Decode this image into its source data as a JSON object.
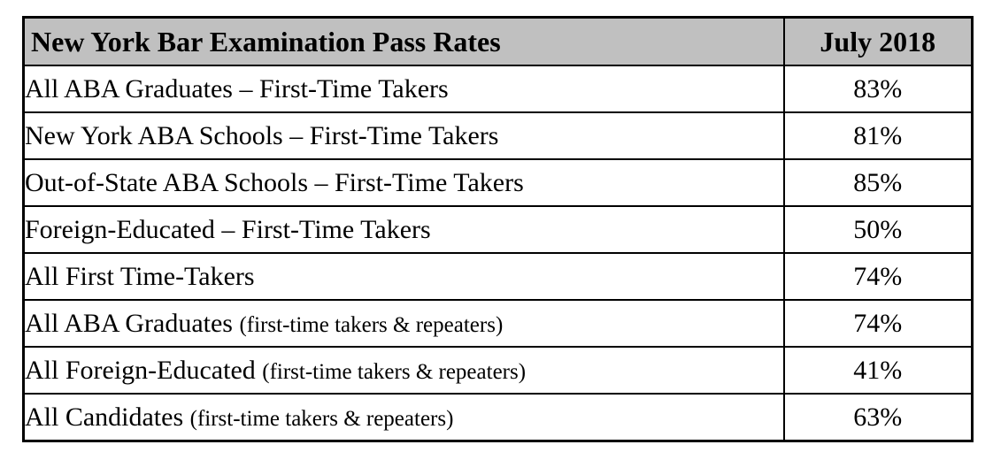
{
  "table": {
    "header": {
      "title": "New York Bar Examination Pass Rates",
      "period": "July 2018"
    },
    "rows": [
      {
        "label": "All ABA Graduates – First-Time Takers",
        "note": "",
        "value": "83%"
      },
      {
        "label": "New York ABA Schools – First-Time Takers",
        "note": "",
        "value": "81%"
      },
      {
        "label": "Out-of-State ABA Schools – First-Time Takers",
        "note": "",
        "value": "85%"
      },
      {
        "label": "Foreign-Educated – First-Time Takers",
        "note": "",
        "value": "50%"
      },
      {
        "label": "All First Time-Takers",
        "note": "",
        "value": "74%"
      },
      {
        "label": "All ABA Graduates",
        "note": "(first-time takers & repeaters)",
        "value": "74%"
      },
      {
        "label": "All Foreign-Educated",
        "note": "(first-time takers & repeaters)",
        "value": "41%"
      },
      {
        "label": "All Candidates",
        "note": "(first-time takers & repeaters)",
        "value": "63%"
      }
    ],
    "colors": {
      "header_bg": "#c0c0c0",
      "border": "#000000"
    }
  },
  "chart_data": {
    "type": "table",
    "title": "New York Bar Examination Pass Rates",
    "columns": [
      "New York Bar Examination Pass Rates",
      "July 2018"
    ],
    "categories": [
      "All ABA Graduates – First-Time Takers",
      "New York ABA Schools – First-Time Takers",
      "Out-of-State ABA Schools – First-Time Takers",
      "Foreign-Educated – First-Time Takers",
      "All First Time-Takers",
      "All ABA Graduates (first-time takers & repeaters)",
      "All Foreign-Educated (first-time takers & repeaters)",
      "All Candidates (first-time takers & repeaters)"
    ],
    "values": [
      83,
      81,
      85,
      50,
      74,
      74,
      41,
      63
    ],
    "value_unit": "%"
  }
}
